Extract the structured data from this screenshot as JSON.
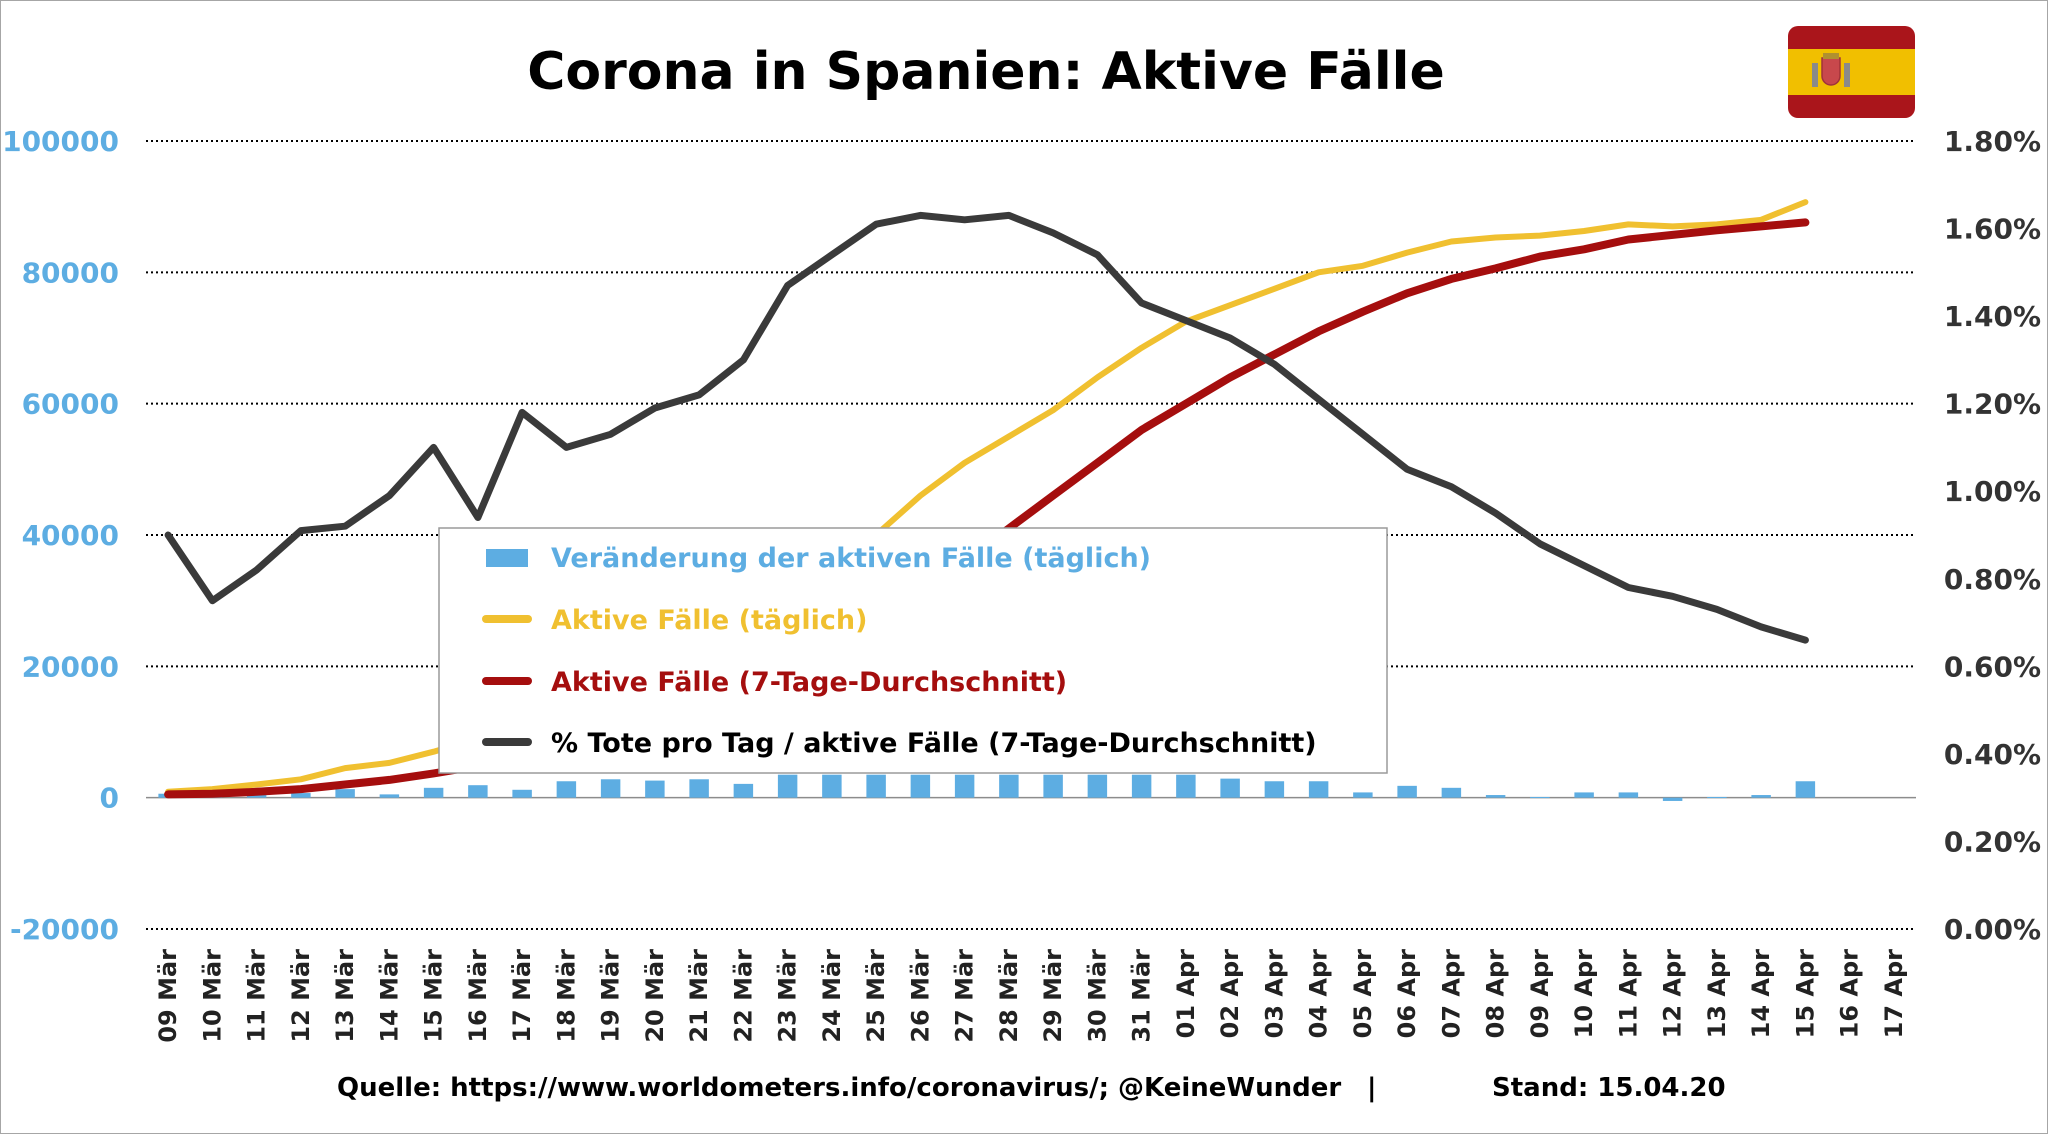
{
  "title": "Corona in Spanien: Aktive Fälle",
  "footer": {
    "source": "Quelle: https://www.worldometers.info/coronavirus/; @KeineWunder",
    "separator": "|",
    "date": "Stand: 15.04.20"
  },
  "flag": {
    "icon": "spain-flag-icon",
    "colors": {
      "red": "#aa151b",
      "yellow": "#f1bf00"
    }
  },
  "colors": {
    "bars": "#5dade2",
    "active": "#f0c030",
    "avg7": "#a50e0e",
    "deaths": "#3a3a3a",
    "left_axis": "#5dade2",
    "right_axis": "#333333"
  },
  "chart_data": {
    "type": "bar+line",
    "categories": [
      "09 Mär",
      "10 Mär",
      "11 Mär",
      "12 Mär",
      "13 Mär",
      "14 Mär",
      "15 Mär",
      "16 Mär",
      "17 Mär",
      "18 Mär",
      "19 Mär",
      "20 Mär",
      "21 Mär",
      "22 Mär",
      "23 Mär",
      "24 Mär",
      "25 Mär",
      "26 Mär",
      "27 Mär",
      "28 Mär",
      "29 Mär",
      "30 Mär",
      "31 Mär",
      "01 Apr",
      "02 Apr",
      "03 Apr",
      "04 Apr",
      "05 Apr",
      "06 Apr",
      "07 Apr",
      "08 Apr",
      "09 Apr",
      "10 Apr",
      "11 Apr",
      "12 Apr",
      "13 Apr",
      "14 Apr",
      "15 Apr",
      "16 Apr",
      "17 Apr"
    ],
    "y_left": {
      "min": -20000,
      "max": 100000,
      "step": 20000,
      "ticks": [
        "-20000",
        "0",
        "20000",
        "40000",
        "60000",
        "80000",
        "100000"
      ]
    },
    "y_right": {
      "min": 0.0,
      "max": 1.8,
      "step": 0.2,
      "ticks": [
        "0.00%",
        "0.20%",
        "0.40%",
        "0.60%",
        "0.80%",
        "1.00%",
        "1.20%",
        "1.40%",
        "1.60%",
        "1.80%"
      ]
    },
    "grid": "horizontal dotted",
    "legend_position": "center",
    "series": [
      {
        "name": "Veränderung der aktiven Fälle (täglich)",
        "type": "bar",
        "axis": "left",
        "values": [
          600,
          400,
          700,
          700,
          1300,
          500,
          1500,
          1900,
          1200,
          2500,
          2800,
          2600,
          2800,
          2100,
          3500,
          3500,
          3500,
          3500,
          3500,
          3500,
          3500,
          3500,
          3500,
          3500,
          2900,
          2500,
          2500,
          800,
          1800,
          1500,
          400,
          100,
          800,
          800,
          -500,
          100,
          400,
          2500,
          null,
          null
        ]
      },
      {
        "name": "Aktive Fälle (täglich)",
        "type": "line",
        "axis": "left",
        "values": [
          900,
          1300,
          2000,
          2800,
          4500,
          5300,
          7000,
          9000,
          10000,
          12000,
          14000,
          16500,
          19500,
          23000,
          28000,
          33000,
          40000,
          46000,
          51000,
          55000,
          59000,
          64000,
          68500,
          72500,
          75000,
          77500,
          80000,
          81000,
          83000,
          84700,
          85300,
          85600,
          86300,
          87300,
          87000,
          87300,
          88000,
          90700,
          null,
          null
        ]
      },
      {
        "name": "Aktive Fälle (7-Tage-Durchschnitt)",
        "type": "line",
        "axis": "left",
        "values": [
          500,
          600,
          900,
          1300,
          2000,
          2700,
          3700,
          4800,
          6000,
          7500,
          9300,
          11300,
          13700,
          16200,
          19500,
          23000,
          27000,
          31500,
          36000,
          41000,
          46000,
          51000,
          56000,
          60000,
          64000,
          67500,
          71000,
          74000,
          76800,
          79000,
          80600,
          82400,
          83500,
          85000,
          85700,
          86400,
          87000,
          87600,
          null,
          null
        ]
      },
      {
        "name": "% Tote pro Tag / aktive Fälle (7-Tage-Durchschnitt)",
        "type": "line",
        "axis": "right",
        "values": [
          0.9,
          0.75,
          0.82,
          0.91,
          0.92,
          0.99,
          1.1,
          0.94,
          1.18,
          1.1,
          1.13,
          1.19,
          1.22,
          1.3,
          1.47,
          1.54,
          1.61,
          1.63,
          1.62,
          1.63,
          1.59,
          1.54,
          1.43,
          1.39,
          1.35,
          1.29,
          1.21,
          1.13,
          1.05,
          1.01,
          0.95,
          0.88,
          0.83,
          0.78,
          0.76,
          0.73,
          0.69,
          0.66,
          null,
          null
        ]
      }
    ]
  }
}
